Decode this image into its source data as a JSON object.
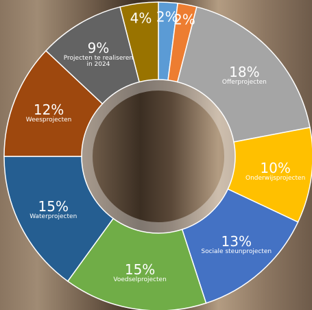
{
  "chart_data": {
    "type": "donut",
    "categories": [
      null,
      null,
      "Offerprojecten",
      "Onderwijsprojecten",
      "Sociale steunprojecten",
      "Voedselprojecten",
      "Waterprojecten",
      "Weesprojecten",
      "Projecten te realiseren in 2024",
      null
    ],
    "values": [
      2,
      2,
      18,
      10,
      13,
      15,
      15,
      12,
      9,
      4
    ],
    "value_labels": [
      "2%",
      "2%",
      "18%",
      "10%",
      "13%",
      "15%",
      "15%",
      "12%",
      "9%",
      "4%"
    ],
    "colors": [
      "#5b9bd5",
      "#ed7d31",
      "#a5a5a5",
      "#ffc000",
      "#4472c4",
      "#70ad47",
      "#255e91",
      "#9e480e",
      "#636363",
      "#997300"
    ]
  }
}
